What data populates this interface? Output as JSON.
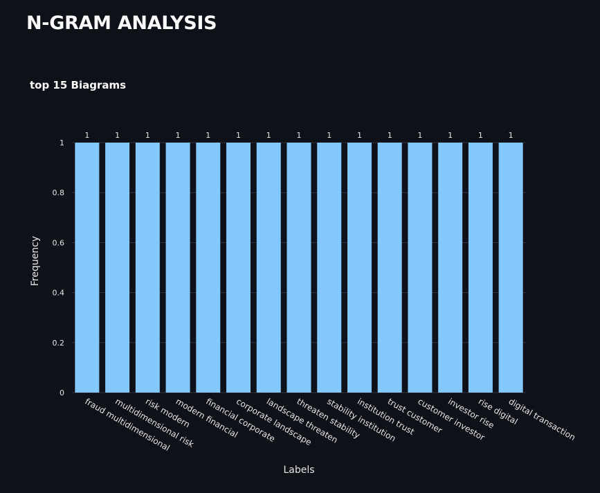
{
  "page": {
    "title": "N-GRAM ANALYSIS"
  },
  "chart_data": {
    "type": "bar",
    "title": "top 15 Biagrams",
    "xlabel": "Labels",
    "ylabel": "Frequency",
    "categories": [
      "fraud multidimensional",
      "multidimensional risk",
      "risk modern",
      "modern financial",
      "financial corporate",
      "corporate landscape",
      "landscape threaten",
      "threaten stability",
      "stability institution",
      "institution trust",
      "trust customer",
      "customer investor",
      "investor rise",
      "rise digital",
      "digital transaction"
    ],
    "values": [
      1,
      1,
      1,
      1,
      1,
      1,
      1,
      1,
      1,
      1,
      1,
      1,
      1,
      1,
      1
    ],
    "data_labels": [
      "1",
      "1",
      "1",
      "1",
      "1",
      "1",
      "1",
      "1",
      "1",
      "1",
      "1",
      "1",
      "1",
      "1",
      "1"
    ],
    "ylim": [
      0,
      1
    ],
    "yticks": [
      0,
      0.2,
      0.4,
      0.6,
      0.8,
      1
    ],
    "ytick_labels": [
      "0",
      "0.2",
      "0.4",
      "0.6",
      "0.8",
      "1"
    ],
    "grid": "horizontal",
    "bar_color": "#83c9ff",
    "background_color": "#0e1117",
    "grid_color": "#31333f"
  }
}
